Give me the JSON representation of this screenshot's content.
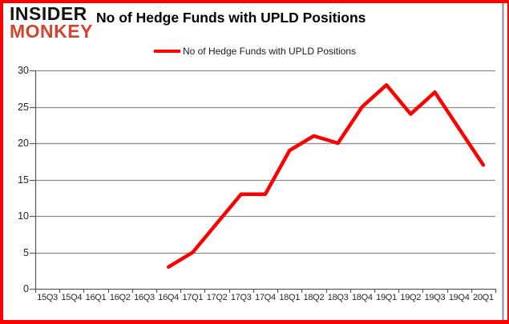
{
  "logo": {
    "line1": "INSIDER",
    "line2": "MONKEY"
  },
  "title": "No of Hedge Funds with UPLD Positions",
  "legend": {
    "label": "No of Hedge Funds with UPLD Positions"
  },
  "colors": {
    "line": "#fe0000",
    "page_border": "#fe0000",
    "gridline": "#8a8a8a",
    "axis": "#595959",
    "logo_insider": "#141414",
    "logo_monkey": "#d0452e",
    "label_text": "#262626"
  },
  "chart_data": {
    "type": "line",
    "title": "No of Hedge Funds with UPLD Positions",
    "categories": [
      "15Q3",
      "15Q4",
      "16Q1",
      "16Q2",
      "16Q3",
      "16Q4",
      "17Q1",
      "17Q2",
      "17Q3",
      "17Q4",
      "18Q1",
      "18Q2",
      "18Q3",
      "18Q4",
      "19Q1",
      "19Q2",
      "19Q3",
      "19Q4",
      "20Q1"
    ],
    "series": [
      {
        "name": "No of Hedge Funds with UPLD Positions",
        "values": [
          null,
          null,
          null,
          null,
          null,
          3,
          5,
          9,
          13,
          13,
          19,
          21,
          20,
          25,
          28,
          24,
          27,
          22,
          17
        ]
      }
    ],
    "xlabel": "",
    "ylabel": "",
    "ylim": [
      0,
      30
    ],
    "y_ticks": [
      0,
      5,
      10,
      15,
      20,
      25,
      30
    ],
    "grid": true,
    "legend_position": "top-center"
  }
}
